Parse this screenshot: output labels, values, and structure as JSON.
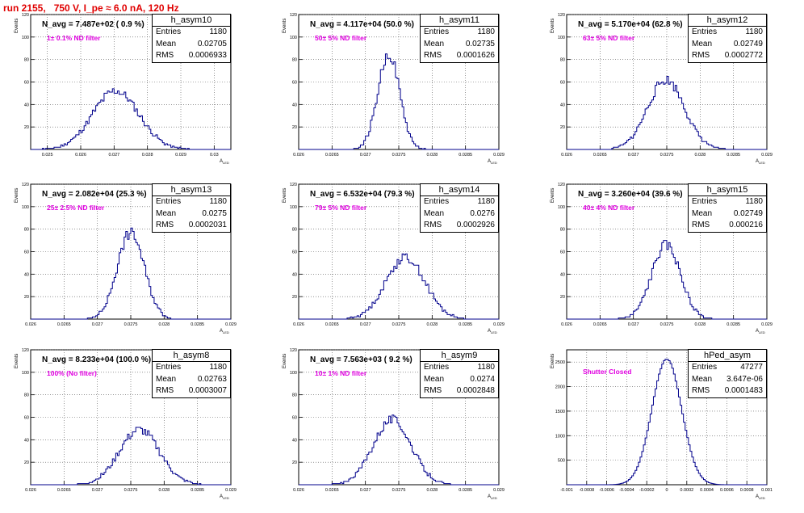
{
  "run_title": "run 2155,   750 V, I_pe ≈ 6.0 nA, 120 Hz",
  "colors": {
    "histogram": "#00008b",
    "title": "#e00000",
    "filter_text": "#e000e0"
  },
  "stat_labels": {
    "entries": "Entries",
    "mean": "Mean",
    "rms": "RMS"
  },
  "ylabel": "Events",
  "xlabel": "A",
  "xlabel_sub": "LED",
  "panels": [
    {
      "name": "h_asym10",
      "navg": "N_avg = 7.487e+02 ( 0.9 %)",
      "filter": "1± 0.1% ND filter",
      "entries": "1180",
      "mean": "0.02705",
      "rms": "0.0006933"
    },
    {
      "name": "h_asym11",
      "navg": "N_avg = 4.117e+04 (50.0 %)",
      "filter": "50± 5% ND filter",
      "entries": "1180",
      "mean": "0.02735",
      "rms": "0.0001626"
    },
    {
      "name": "h_asym12",
      "navg": "N_avg = 5.170e+04 (62.8 %)",
      "filter": "63± 5% ND filter",
      "entries": "1180",
      "mean": "0.02749",
      "rms": "0.0002772"
    },
    {
      "name": "h_asym13",
      "navg": "N_avg = 2.082e+04 (25.3 %)",
      "filter": "25± 2.5% ND filter",
      "entries": "1180",
      "mean": "0.0275",
      "rms": "0.0002031"
    },
    {
      "name": "h_asym14",
      "navg": "N_avg = 6.532e+04 (79.3 %)",
      "filter": "79± 5% ND filter",
      "entries": "1180",
      "mean": "0.0276",
      "rms": "0.0002926"
    },
    {
      "name": "h_asym15",
      "navg": "N_avg = 3.260e+04 (39.6 %)",
      "filter": "40± 4% ND filter",
      "entries": "1180",
      "mean": "0.02749",
      "rms": "0.000216"
    },
    {
      "name": "h_asym8",
      "navg": "N_avg = 8.233e+04 (100.0 %)",
      "filter": "100% (No filter)",
      "entries": "1180",
      "mean": "0.02763",
      "rms": "0.0003007"
    },
    {
      "name": "h_asym9",
      "navg": "N_avg = 7.563e+03 ( 9.2 %)",
      "filter": "10± 1% ND filter",
      "entries": "1180",
      "mean": "0.0274",
      "rms": "0.0002848"
    },
    {
      "name": "hPed_asym",
      "navg": "",
      "filter": "Shutter Closed",
      "entries": "47277",
      "mean": "3.647e-06",
      "rms": "0.0001483"
    }
  ],
  "chart_data": [
    {
      "type": "bar",
      "title": "h_asym10",
      "xlim": [
        0.0245,
        0.0305
      ],
      "ylim": [
        0,
        120
      ],
      "xticks": [
        0.025,
        0.026,
        0.027,
        0.028,
        0.029,
        0.03
      ],
      "xticklabels": [
        "0.025",
        "0.026",
        "0.027",
        "0.028",
        "0.029",
        "0.03"
      ],
      "yticks": [
        20,
        40,
        60,
        80,
        100,
        120
      ],
      "bins": {
        "mean": 0.02705,
        "sigma": 0.0006933,
        "peak": 52,
        "seed": 11
      }
    },
    {
      "type": "bar",
      "title": "h_asym11",
      "xlim": [
        0.026,
        0.029
      ],
      "ylim": [
        0,
        120
      ],
      "xticks": [
        0.026,
        0.0265,
        0.027,
        0.0275,
        0.028,
        0.0285,
        0.029
      ],
      "xticklabels": [
        "0.026",
        "0.0265",
        "0.027",
        "0.0275",
        "0.028",
        "0.0285",
        "0.029"
      ],
      "yticks": [
        20,
        40,
        60,
        80,
        100,
        120
      ],
      "bins": {
        "mean": 0.02735,
        "sigma": 0.0001626,
        "peak": 85,
        "seed": 22
      }
    },
    {
      "type": "bar",
      "title": "h_asym12",
      "xlim": [
        0.026,
        0.029
      ],
      "ylim": [
        0,
        120
      ],
      "xticks": [
        0.026,
        0.0265,
        0.027,
        0.0275,
        0.028,
        0.0285,
        0.029
      ],
      "xticklabels": [
        "0.026",
        "0.0265",
        "0.027",
        "0.0275",
        "0.028",
        "0.0285",
        "0.029"
      ],
      "yticks": [
        20,
        40,
        60,
        80,
        100,
        120
      ],
      "bins": {
        "mean": 0.02749,
        "sigma": 0.0002772,
        "peak": 62,
        "seed": 33
      }
    },
    {
      "type": "bar",
      "title": "h_asym13",
      "xlim": [
        0.026,
        0.029
      ],
      "ylim": [
        0,
        120
      ],
      "xticks": [
        0.026,
        0.0265,
        0.027,
        0.0275,
        0.028,
        0.0285,
        0.029
      ],
      "xticklabels": [
        "0.026",
        "0.0265",
        "0.027",
        "0.0275",
        "0.028",
        "0.0285",
        "0.029"
      ],
      "yticks": [
        20,
        40,
        60,
        80,
        100,
        120
      ],
      "bins": {
        "mean": 0.0275,
        "sigma": 0.0002031,
        "peak": 77,
        "seed": 44
      }
    },
    {
      "type": "bar",
      "title": "h_asym14",
      "xlim": [
        0.026,
        0.029
      ],
      "ylim": [
        0,
        120
      ],
      "xticks": [
        0.026,
        0.0265,
        0.027,
        0.0275,
        0.028,
        0.0285,
        0.029
      ],
      "xticklabels": [
        "0.026",
        "0.0265",
        "0.027",
        "0.0275",
        "0.028",
        "0.0285",
        "0.029"
      ],
      "yticks": [
        20,
        40,
        60,
        80,
        100,
        120
      ],
      "bins": {
        "mean": 0.0276,
        "sigma": 0.0002926,
        "peak": 55,
        "seed": 55
      }
    },
    {
      "type": "bar",
      "title": "h_asym15",
      "xlim": [
        0.026,
        0.029
      ],
      "ylim": [
        0,
        120
      ],
      "xticks": [
        0.026,
        0.0265,
        0.027,
        0.0275,
        0.028,
        0.0285,
        0.029
      ],
      "xticklabels": [
        "0.026",
        "0.0265",
        "0.027",
        "0.0275",
        "0.028",
        "0.0285",
        "0.029"
      ],
      "yticks": [
        20,
        40,
        60,
        80,
        100,
        120
      ],
      "bins": {
        "mean": 0.02749,
        "sigma": 0.000216,
        "peak": 66,
        "seed": 66
      }
    },
    {
      "type": "bar",
      "title": "h_asym8",
      "xlim": [
        0.026,
        0.029
      ],
      "ylim": [
        0,
        120
      ],
      "xticks": [
        0.026,
        0.0265,
        0.027,
        0.0275,
        0.028,
        0.0285,
        0.029
      ],
      "xticklabels": [
        "0.026",
        "0.0265",
        "0.027",
        "0.0275",
        "0.028",
        "0.0285",
        "0.029"
      ],
      "yticks": [
        20,
        40,
        60,
        80,
        100,
        120
      ],
      "bins": {
        "mean": 0.02763,
        "sigma": 0.0003007,
        "peak": 49,
        "seed": 77
      }
    },
    {
      "type": "bar",
      "title": "h_asym9",
      "xlim": [
        0.026,
        0.029
      ],
      "ylim": [
        0,
        120
      ],
      "xticks": [
        0.026,
        0.0265,
        0.027,
        0.0275,
        0.028,
        0.0285,
        0.029
      ],
      "xticklabels": [
        "0.026",
        "0.0265",
        "0.027",
        "0.0275",
        "0.028",
        "0.0285",
        "0.029"
      ],
      "yticks": [
        20,
        40,
        60,
        80,
        100,
        120
      ],
      "bins": {
        "mean": 0.0274,
        "sigma": 0.0002848,
        "peak": 58,
        "seed": 88
      }
    },
    {
      "type": "bar",
      "title": "hPed_asym",
      "xlim": [
        -0.001,
        0.001
      ],
      "ylim": [
        0,
        2750
      ],
      "xticks": [
        -0.001,
        -0.0008,
        -0.0006,
        -0.0004,
        -0.0002,
        0,
        0.0002,
        0.0004,
        0.0006,
        0.0008,
        0.001
      ],
      "xticklabels": [
        "-0.001",
        "-0.0008",
        "-0.0006",
        "-0.0004",
        "-0.0002",
        "0",
        "0.0002",
        "0.0004",
        "0.0006",
        "0.0008",
        "0.001"
      ],
      "yticks": [
        500,
        1000,
        1500,
        2000,
        2500
      ],
      "bins": {
        "mean": 0.0,
        "sigma": 0.0001483,
        "peak": 2560,
        "seed": 99
      }
    }
  ]
}
